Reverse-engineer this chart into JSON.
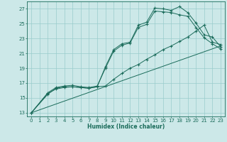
{
  "xlabel": "Humidex (Indice chaleur)",
  "bg_color": "#cce8e8",
  "grid_color": "#99cccc",
  "line_color": "#1a6b5a",
  "xlim": [
    -0.5,
    23.5
  ],
  "ylim": [
    12.5,
    28.0
  ],
  "xticks": [
    0,
    1,
    2,
    3,
    4,
    5,
    6,
    7,
    8,
    9,
    10,
    11,
    12,
    13,
    14,
    15,
    16,
    17,
    18,
    19,
    20,
    21,
    22,
    23
  ],
  "yticks": [
    13,
    15,
    17,
    19,
    21,
    23,
    25,
    27
  ],
  "lines": [
    {
      "x": [
        0,
        2,
        3,
        4,
        5,
        6,
        7,
        8,
        9,
        10,
        11,
        12,
        13,
        14,
        15,
        16,
        17,
        18,
        19,
        20,
        21,
        22,
        23
      ],
      "y": [
        13.0,
        15.5,
        16.3,
        16.5,
        16.5,
        16.4,
        16.3,
        16.5,
        19.2,
        21.5,
        22.3,
        22.5,
        24.8,
        25.2,
        27.1,
        27.0,
        26.8,
        27.3,
        26.5,
        25.1,
        23.5,
        23.2,
        21.9
      ],
      "marker": true
    },
    {
      "x": [
        0,
        2,
        3,
        4,
        5,
        6,
        7,
        8,
        9,
        10,
        11,
        12,
        13,
        14,
        15,
        16,
        17,
        18,
        19,
        20,
        21,
        22,
        23
      ],
      "y": [
        13.0,
        15.7,
        16.4,
        16.6,
        16.7,
        16.5,
        16.4,
        16.6,
        19.0,
        21.3,
        22.1,
        22.4,
        24.5,
        24.9,
        26.7,
        26.6,
        26.5,
        26.2,
        26.0,
        24.5,
        23.1,
        22.3,
        21.6
      ],
      "marker": true
    },
    {
      "x": [
        0,
        2,
        3,
        4,
        5,
        6,
        7,
        8,
        9,
        10,
        11,
        12,
        13,
        14,
        15,
        16,
        17,
        18,
        19,
        20,
        21,
        22,
        23
      ],
      "y": [
        13.0,
        15.6,
        16.2,
        16.4,
        16.5,
        16.4,
        16.3,
        16.5,
        16.6,
        17.5,
        18.3,
        19.0,
        19.5,
        20.2,
        20.8,
        21.5,
        22.0,
        22.6,
        23.2,
        24.0,
        24.8,
        22.5,
        22.2
      ],
      "marker": true
    },
    {
      "x": [
        0,
        23
      ],
      "y": [
        13.0,
        22.0
      ],
      "marker": false
    }
  ]
}
